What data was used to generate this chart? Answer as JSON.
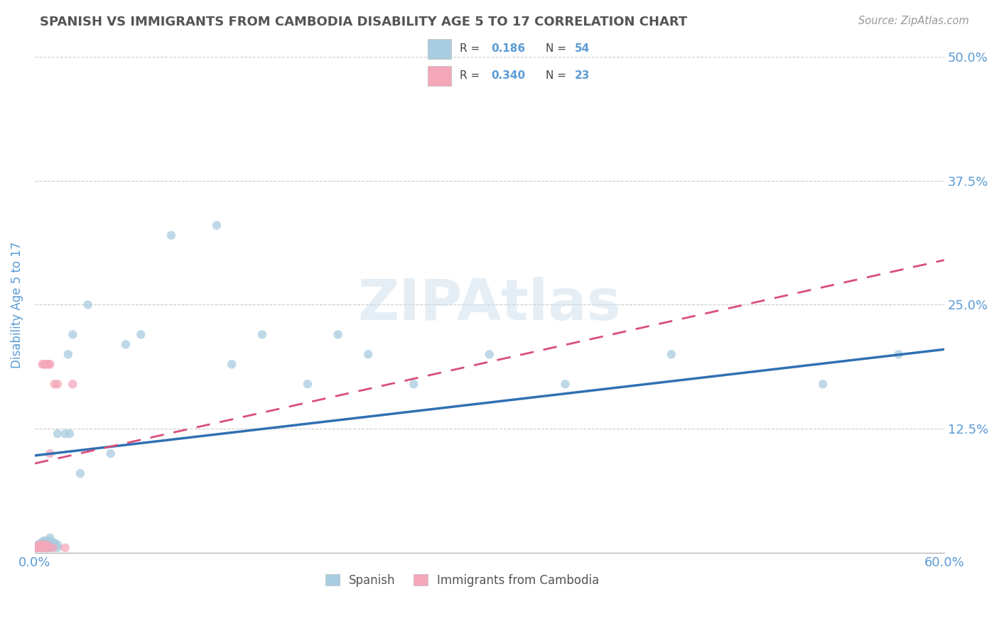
{
  "title": "SPANISH VS IMMIGRANTS FROM CAMBODIA DISABILITY AGE 5 TO 17 CORRELATION CHART",
  "source": "Source: ZipAtlas.com",
  "ylabel": "Disability Age 5 to 17",
  "xlim": [
    0.0,
    0.6
  ],
  "ylim": [
    0.0,
    0.5
  ],
  "xtick_vals": [
    0.0,
    0.1,
    0.2,
    0.3,
    0.4,
    0.5,
    0.6
  ],
  "xticklabels": [
    "0.0%",
    "",
    "",
    "",
    "",
    "",
    "60.0%"
  ],
  "ytick_vals": [
    0.0,
    0.125,
    0.25,
    0.375,
    0.5
  ],
  "yticklabels": [
    "",
    "12.5%",
    "25.0%",
    "37.5%",
    "50.0%"
  ],
  "r_spanish": 0.186,
  "n_spanish": 54,
  "r_cambodia": 0.34,
  "n_cambodia": 23,
  "color_spanish": "#a8cce0",
  "color_cambodia": "#f4a7b9",
  "color_spanish_line": "#3070b3",
  "color_cambodia_line": "#d94f7a",
  "color_title": "#555555",
  "color_axis_labels": "#5b9bd5",
  "color_tick_labels": "#5b9bd5",
  "spanish_x": [
    0.001,
    0.002,
    0.002,
    0.003,
    0.003,
    0.004,
    0.004,
    0.004,
    0.005,
    0.005,
    0.005,
    0.006,
    0.006,
    0.006,
    0.007,
    0.007,
    0.007,
    0.008,
    0.008,
    0.009,
    0.009,
    0.009,
    0.01,
    0.01,
    0.01,
    0.01,
    0.012,
    0.012,
    0.013,
    0.015,
    0.015,
    0.015,
    0.02,
    0.022,
    0.023,
    0.025,
    0.03,
    0.035,
    0.05,
    0.06,
    0.07,
    0.09,
    0.12,
    0.13,
    0.15,
    0.18,
    0.2,
    0.22,
    0.25,
    0.3,
    0.35,
    0.42,
    0.52,
    0.57
  ],
  "spanish_y": [
    0.005,
    0.005,
    0.008,
    0.005,
    0.008,
    0.005,
    0.008,
    0.01,
    0.005,
    0.008,
    0.01,
    0.005,
    0.008,
    0.012,
    0.005,
    0.008,
    0.012,
    0.005,
    0.01,
    0.005,
    0.008,
    0.012,
    0.005,
    0.008,
    0.012,
    0.015,
    0.005,
    0.01,
    0.01,
    0.005,
    0.008,
    0.12,
    0.12,
    0.2,
    0.12,
    0.22,
    0.08,
    0.25,
    0.1,
    0.21,
    0.22,
    0.32,
    0.33,
    0.19,
    0.22,
    0.17,
    0.22,
    0.2,
    0.17,
    0.2,
    0.17,
    0.2,
    0.17,
    0.2
  ],
  "cambodia_x": [
    0.001,
    0.002,
    0.003,
    0.003,
    0.004,
    0.004,
    0.005,
    0.005,
    0.006,
    0.006,
    0.007,
    0.007,
    0.008,
    0.008,
    0.009,
    0.009,
    0.01,
    0.01,
    0.012,
    0.013,
    0.015,
    0.02,
    0.025
  ],
  "cambodia_y": [
    0.005,
    0.005,
    0.005,
    0.008,
    0.005,
    0.008,
    0.19,
    0.005,
    0.19,
    0.008,
    0.19,
    0.005,
    0.19,
    0.008,
    0.005,
    0.19,
    0.1,
    0.19,
    0.005,
    0.17,
    0.17,
    0.005,
    0.17
  ]
}
